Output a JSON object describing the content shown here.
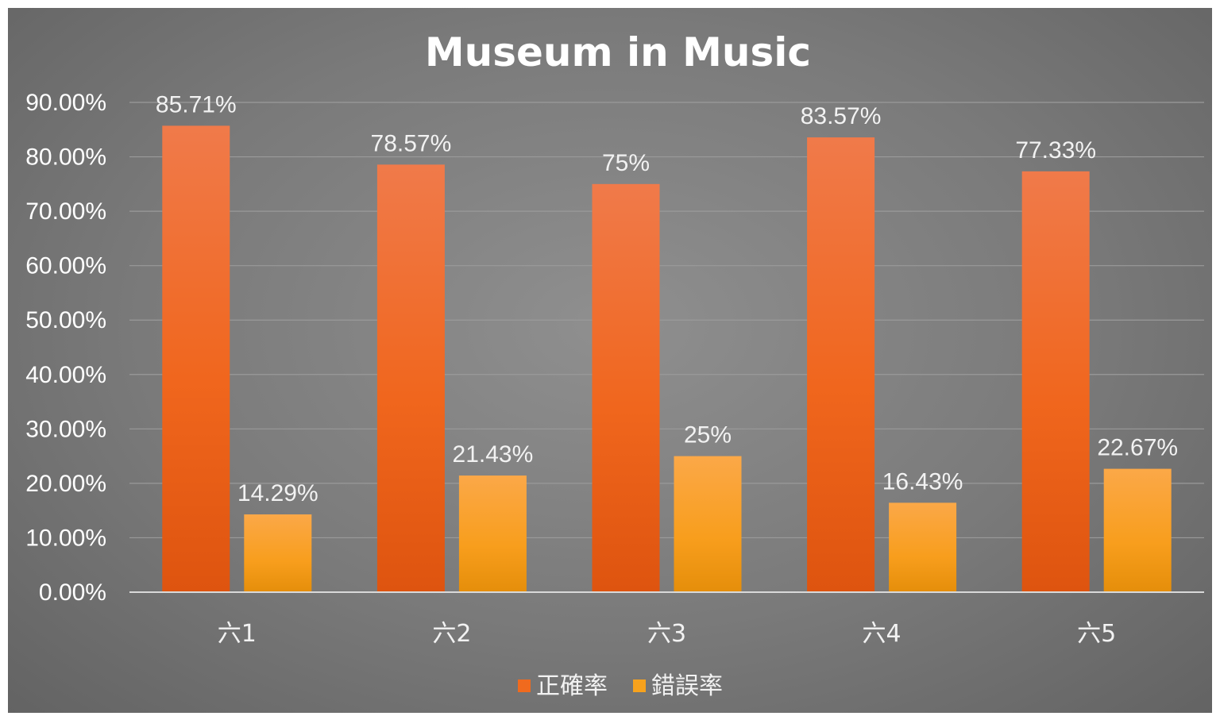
{
  "chart_data": {
    "type": "bar",
    "title": "Museum in Music",
    "xlabel": "",
    "ylabel": "",
    "categories": [
      "六1",
      "六2",
      "六3",
      "六4",
      "六5"
    ],
    "series": [
      {
        "name": "正確率",
        "values": [
          85.71,
          78.57,
          75,
          83.57,
          77.33
        ],
        "labels": [
          "85.71%",
          "78.57%",
          "75%",
          "83.57%",
          "77.33%"
        ],
        "color": "#f06a1e"
      },
      {
        "name": "錯誤率",
        "values": [
          14.29,
          21.43,
          25,
          16.43,
          22.67
        ],
        "labels": [
          "14.29%",
          "21.43%",
          "25%",
          "16.43%",
          "22.67%"
        ],
        "color": "#f7a21d"
      }
    ],
    "ylim": [
      0,
      90
    ],
    "yticks": [
      0,
      10,
      20,
      30,
      40,
      50,
      60,
      70,
      80,
      90
    ],
    "ytick_labels": [
      "0.00%",
      "10.00%",
      "20.00%",
      "30.00%",
      "40.00%",
      "50.00%",
      "60.00%",
      "70.00%",
      "80.00%",
      "90.00%"
    ],
    "grid": true,
    "legend_position": "bottom",
    "background_color": "#7f7f7f"
  }
}
